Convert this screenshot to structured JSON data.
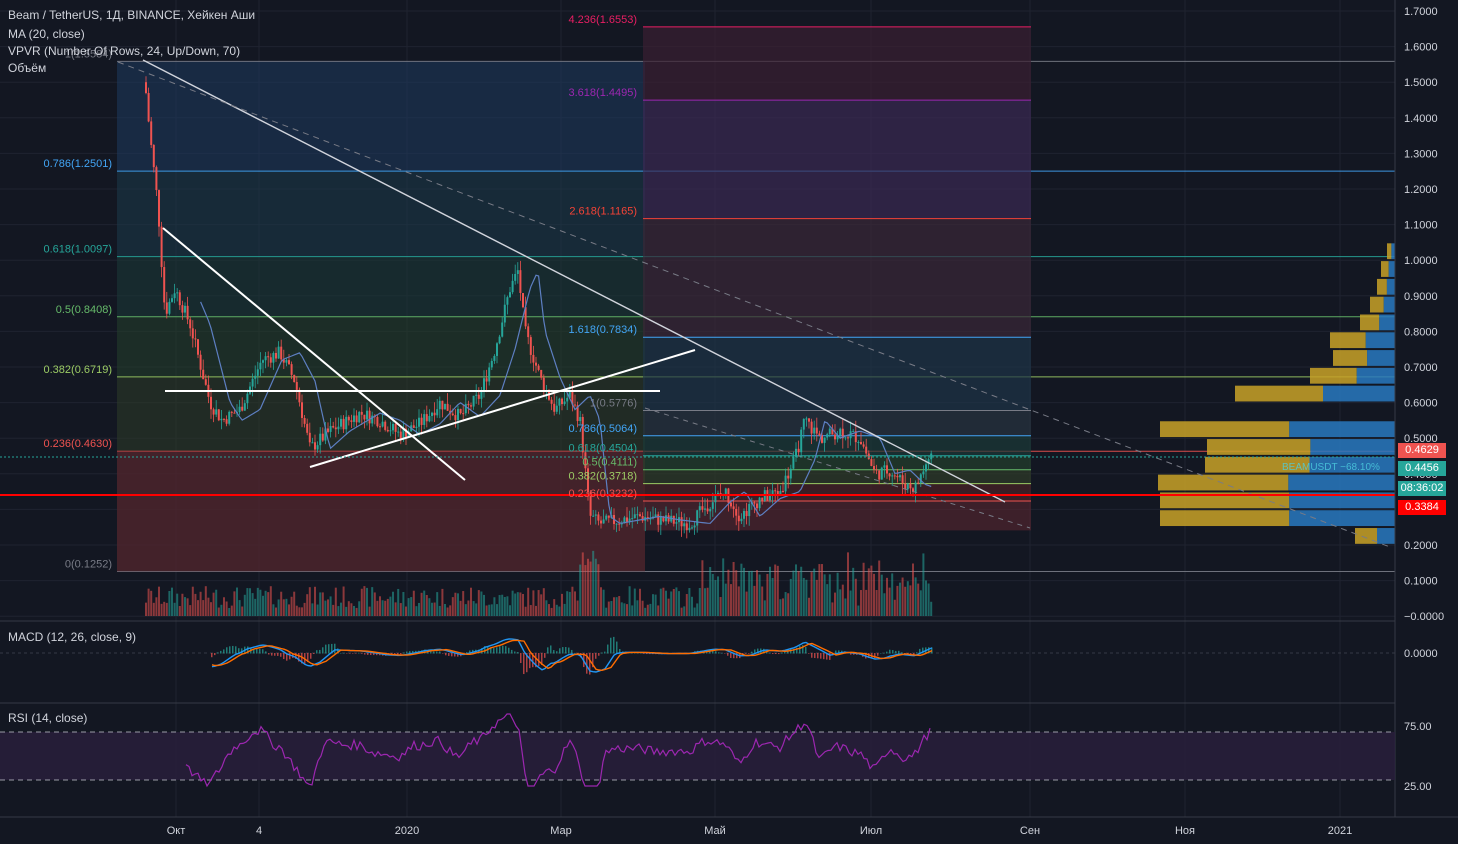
{
  "legend": {
    "symbol": "Beam / TetherUS, 1Д, BINANCE, Хейкен Аши",
    "ma": "MA (20, close)",
    "vpvr": "VPVR (Number Of Rows, 24, Up/Down, 70)",
    "volume": "Объём",
    "macd": "MACD (12, 26, close, 9)",
    "rsi": "RSI (14, close)"
  },
  "fib_left": [
    {
      "label": "1(1.5584)",
      "value": 1.5584,
      "color": "#787b86"
    },
    {
      "label": "0.786(1.2501)",
      "value": 1.2501,
      "color": "#42a5f5"
    },
    {
      "label": "0.618(1.0097)",
      "value": 1.0097,
      "color": "#26a69a"
    },
    {
      "label": "0.5(0.8408)",
      "value": 0.8408,
      "color": "#66bb6a"
    },
    {
      "label": "0.382(0.6719)",
      "value": 0.6719,
      "color": "#9ccc65"
    },
    {
      "label": "0.236(0.4630)",
      "value": 0.463,
      "color": "#ef5350"
    },
    {
      "label": "0(0.1252)",
      "value": 0.1252,
      "color": "#787b86"
    }
  ],
  "fib_ext": [
    {
      "label": "4.236(1.6553)",
      "value": 1.6553,
      "color": "#e91e63"
    },
    {
      "label": "3.618(1.4495)",
      "value": 1.4495,
      "color": "#9c27b0"
    },
    {
      "label": "2.618(1.1165)",
      "value": 1.1165,
      "color": "#f44336"
    },
    {
      "label": "1.618(0.7834)",
      "value": 0.7834,
      "color": "#42a5f5"
    },
    {
      "label": "1(0.5776)",
      "value": 0.5776,
      "color": "#787b86"
    },
    {
      "label": "0.786(0.5064)",
      "value": 0.5064,
      "color": "#42a5f5"
    },
    {
      "label": "0.618(0.4504)",
      "value": 0.4504,
      "color": "#26a69a"
    },
    {
      "label": "0.5(0.4111)",
      "value": 0.4111,
      "color": "#66bb6a"
    },
    {
      "label": "0.382(0.3718)",
      "value": 0.3718,
      "color": "#9ccc65"
    },
    {
      "label": "0.236(0.3232)",
      "value": 0.3232,
      "color": "#ef5350"
    }
  ],
  "price_axis": [
    "1.7000",
    "1.6000",
    "1.5000",
    "1.4000",
    "1.3000",
    "1.2000",
    "1.1000",
    "1.0000",
    "0.9000",
    "0.8000",
    "0.7000",
    "0.6000",
    "0.5000",
    "0.4000",
    "0.3000",
    "0.2000",
    "0.1000",
    "−0.0000"
  ],
  "macd_axis": [
    "0.0000"
  ],
  "rsi_axis": [
    "75.00",
    "25.00"
  ],
  "time_axis": [
    "Окт",
    "4",
    "2020",
    "Мар",
    "Май",
    "Июл",
    "Сен",
    "Ноя",
    "2021"
  ],
  "price_tags": {
    "last": "0.4629",
    "ma": "0.4456",
    "countdown": "08:36:02",
    "support": "0.3384",
    "symbol_tag": "BEAMUSDT −68.10%"
  },
  "colors": {
    "up": "#26a69a",
    "down": "#ef5350",
    "ma": "#5d7fc2",
    "macd": "#2196f3",
    "signal": "#ff6d00",
    "rsi": "#9c27b0",
    "support_line": "#ff0000",
    "trend_line": "#d1d4dc"
  }
}
